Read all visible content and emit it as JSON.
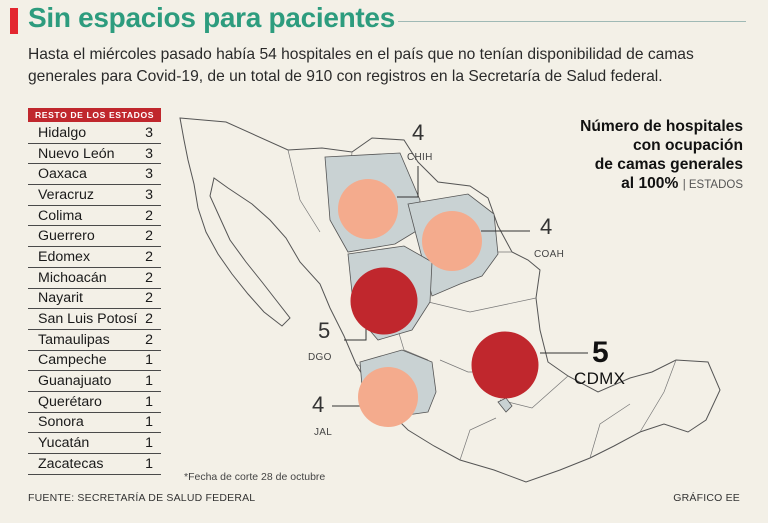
{
  "title": "Sin espacios para pacientes",
  "subtitle": "Hasta el miércoles pasado había 54 hospitales en el país que no tenían disponibilidad de camas generales para Covid-19, de un total de 910 con registros en la Secretaría de Salud federal.",
  "table_header": "RESTO DE LOS ESTADOS",
  "legend_title_lines": [
    "Número de hospitales",
    "con ocupación",
    "de camas generales",
    "al 100%"
  ],
  "legend_sub": "ESTADOS",
  "footnote": "*Fecha de corte 28 de octubre",
  "source": "FUENTE: SECRETARÍA DE SALUD FEDERAL",
  "credit": "GRÁFICO EE",
  "colors": {
    "title": "#2d9c7e",
    "accent_red": "#e3262f",
    "bubble_high": "#c0272d",
    "bubble_low": "#f4ab8d",
    "map_fill": "#c9d2d3",
    "map_stroke": "#555555"
  },
  "chart_data": {
    "type": "table",
    "rest_of_states": [
      {
        "state": "Hidalgo",
        "value": 3
      },
      {
        "state": "Nuevo León",
        "value": 3
      },
      {
        "state": "Oaxaca",
        "value": 3
      },
      {
        "state": "Veracruz",
        "value": 3
      },
      {
        "state": "Colima",
        "value": 2
      },
      {
        "state": "Guerrero",
        "value": 2
      },
      {
        "state": "Edomex",
        "value": 2
      },
      {
        "state": "Michoacán",
        "value": 2
      },
      {
        "state": "Nayarit",
        "value": 2
      },
      {
        "state": "San Luis Potosí",
        "value": 2
      },
      {
        "state": "Tamaulipas",
        "value": 2
      },
      {
        "state": "Campeche",
        "value": 1
      },
      {
        "state": "Guanajuato",
        "value": 1
      },
      {
        "state": "Querétaro",
        "value": 1
      },
      {
        "state": "Sonora",
        "value": 1
      },
      {
        "state": "Yucatán",
        "value": 1
      },
      {
        "state": "Zacatecas",
        "value": 1
      }
    ],
    "map_bubbles": [
      {
        "code": "CHIH",
        "value": 4
      },
      {
        "code": "COAH",
        "value": 4
      },
      {
        "code": "DGO",
        "value": 5
      },
      {
        "code": "JAL",
        "value": 4
      },
      {
        "code": "CDMX",
        "value": 5
      }
    ]
  }
}
